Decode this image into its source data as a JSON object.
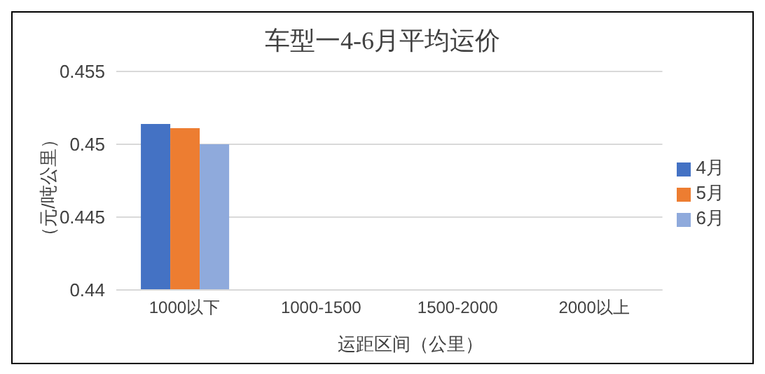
{
  "chart_data": {
    "type": "bar",
    "title": "车型一4-6月平均运价",
    "xlabel": "运距区间（公里）",
    "ylabel": "（元/吨公里）",
    "categories": [
      "1000以下",
      "1000-1500",
      "1500-2000",
      "2000以上"
    ],
    "series": [
      {
        "name": "4月",
        "color": "#4472c4",
        "values": [
          0.4514,
          null,
          null,
          null
        ]
      },
      {
        "name": "5月",
        "color": "#ed7d31",
        "values": [
          0.4511,
          null,
          null,
          null
        ]
      },
      {
        "name": "6月",
        "color": "#8faadc",
        "values": [
          0.45,
          null,
          null,
          null
        ]
      }
    ],
    "ylim": [
      0.44,
      0.455
    ],
    "yticks": [
      0.44,
      0.445,
      0.45,
      0.455
    ],
    "grid": "y",
    "legend": "right"
  }
}
